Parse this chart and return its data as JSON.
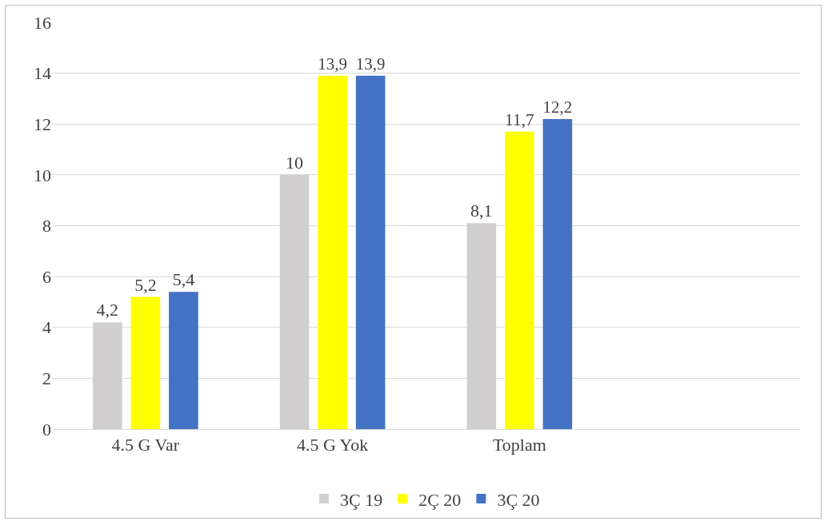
{
  "chart_data": {
    "type": "bar",
    "categories": [
      "4.5 G Var",
      "4.5 G Yok",
      "Toplam",
      null
    ],
    "series": [
      {
        "name": "3Ç 19",
        "color": "#d0cece",
        "values": [
          4.2,
          10,
          8.1,
          null
        ],
        "value_labels": [
          "4,2",
          "10",
          "8,1",
          null
        ]
      },
      {
        "name": "2Ç 20",
        "color": "#ffff00",
        "values": [
          5.2,
          13.9,
          11.7,
          null
        ],
        "value_labels": [
          "5,2",
          "13,9",
          "11,7",
          null
        ]
      },
      {
        "name": "3Ç 20",
        "color": "#4472c4",
        "values": [
          5.4,
          13.9,
          12.2,
          null
        ],
        "value_labels": [
          "5,4",
          "13,9",
          "12,2",
          null
        ]
      }
    ],
    "ylim": [
      0,
      16
    ],
    "yticks": [
      0,
      2,
      4,
      6,
      8,
      10,
      12,
      14,
      16
    ],
    "grid": "y",
    "legend": "bottom"
  }
}
